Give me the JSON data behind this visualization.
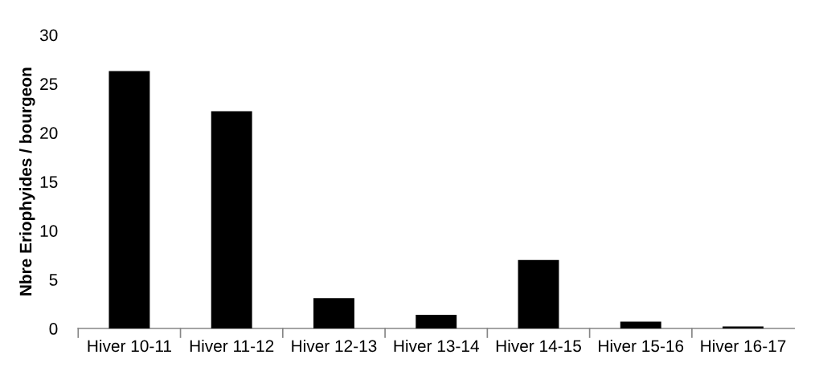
{
  "chart_data": {
    "type": "bar",
    "ylabel": "Nbre Eriophyides / bourgeon",
    "categories": [
      "Hiver 10-11",
      "Hiver 11-12",
      "Hiver 12-13",
      "Hiver 13-14",
      "Hiver 14-15",
      "Hiver 15-16",
      "Hiver 16-17"
    ],
    "values": [
      26.3,
      22.2,
      3.1,
      1.4,
      7.0,
      0.7,
      0.2
    ],
    "color": "#000000",
    "ylim": [
      0,
      30
    ],
    "yticks": [
      0,
      5,
      10,
      15,
      20,
      25,
      30
    ],
    "grid": false,
    "legend": false
  }
}
